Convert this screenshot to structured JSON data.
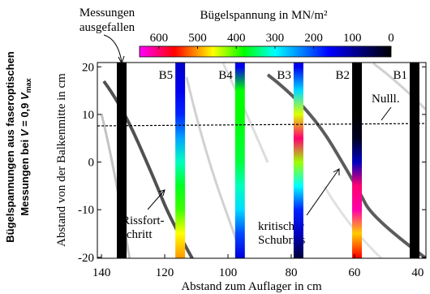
{
  "caption": {
    "line1": "Bügelspannungen aus faseroptischen",
    "line2": [
      "Messungen bei ",
      "V",
      " = 0,9 ",
      "V",
      "max"
    ]
  },
  "chart_data": {
    "type": "strip",
    "xlabel": "Abstand zum Auflager in cm",
    "ylabel": "Abstand von der Balkenmitte in cm",
    "xlim": [
      141.3,
      37.4
    ],
    "xticks": [
      140,
      120,
      100,
      80,
      60,
      40
    ],
    "ylim": [
      -20.2,
      20.9
    ],
    "yticks": [
      20,
      10,
      0,
      -10,
      -20
    ],
    "stress_y": [
      20,
      15,
      10,
      5,
      0,
      -5,
      -10,
      -15,
      -20
    ],
    "stirrups": [
      {
        "x": 133.6
      },
      {
        "label": "B5",
        "x": 115.1,
        "stress": [
          130,
          150,
          180,
          250,
          320,
          370,
          400,
          460,
          500
        ]
      },
      {
        "label": "B4",
        "x": 96.2,
        "stress": [
          150,
          380,
          380,
          370,
          360,
          320,
          280,
          200,
          140
        ]
      },
      {
        "label": "B3",
        "x": 77.7,
        "stress": [
          150,
          280,
          450,
          600,
          430,
          300,
          180,
          120,
          40
        ]
      },
      {
        "label": "B2",
        "x": 59.2,
        "stress": [
          0,
          0,
          0,
          20,
          120,
          600,
          620,
          480,
          560
        ]
      },
      {
        "label": "B1",
        "x": 41,
        "stress": [
          0,
          0,
          0,
          0,
          0,
          0,
          0,
          0,
          0
        ]
      }
    ],
    "neutral_axis": {
      "label": "Nulll.",
      "x": [
        141.3,
        37.4
      ],
      "y": [
        7.6,
        8.1
      ]
    },
    "colorbar": {
      "label": "Bügelspannung in MN/m²",
      "lim": [
        650,
        0
      ],
      "ticks": [
        600,
        500,
        400,
        300,
        200,
        100,
        0
      ],
      "colormap": [
        {
          "value": 650,
          "color": "#ff00ff"
        },
        {
          "value": 560,
          "color": "#ff0000"
        },
        {
          "value": 460,
          "color": "#ffff00"
        },
        {
          "value": 380,
          "color": "#00ff00"
        },
        {
          "value": 300,
          "color": "#00ffff"
        },
        {
          "value": 160,
          "color": "#0000ff"
        },
        {
          "value": 0,
          "color": "#000000"
        }
      ]
    },
    "annotations": {
      "failed": [
        "Messungen",
        "ausgefallen"
      ],
      "crack_growth": [
        "Rissfort-",
        "schritt"
      ],
      "critical": [
        "kritischer",
        "Schubriss"
      ]
    }
  }
}
